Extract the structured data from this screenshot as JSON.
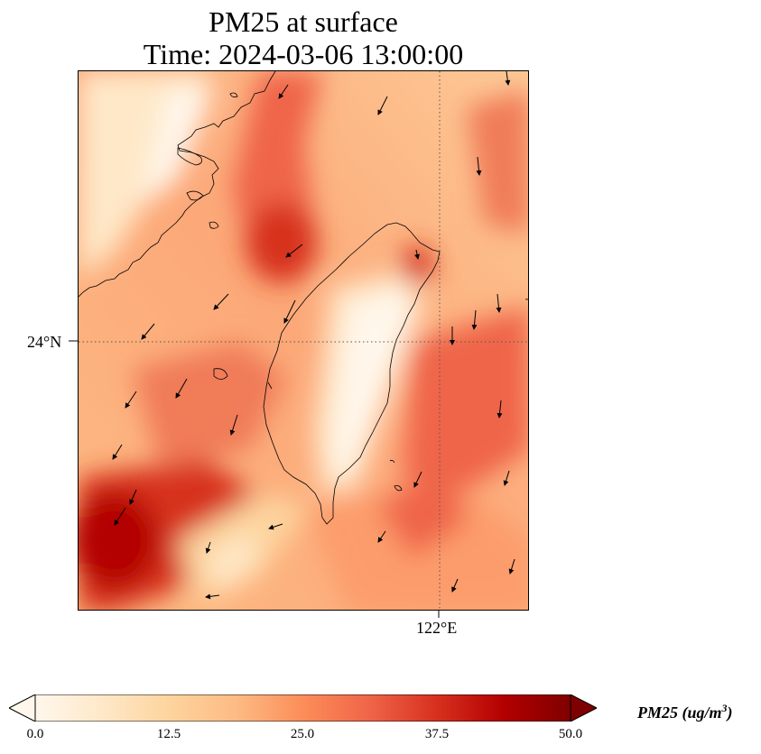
{
  "title": {
    "line1": "PM25 at surface",
    "line2": "Time: 2024-03-06 13:00:00"
  },
  "map": {
    "projection": "plate carree",
    "gridlines": {
      "style": "dotted",
      "color": "#555555"
    },
    "lat_tick_labels": [
      "24°N"
    ],
    "lon_tick_labels": [
      "122°E"
    ],
    "coastline_color": "#000000",
    "vector_color": "#000000"
  },
  "colorbar": {
    "colormap": "OrRd",
    "extend": "both",
    "min": 0.0,
    "max": 50.0,
    "tick_labels": [
      "0.0",
      "12.5",
      "25.0",
      "37.5",
      "50.0"
    ],
    "label_main": "PM25 (ug/m",
    "label_sup": "3",
    "label_end": ")",
    "stops": [
      "#fff7ec",
      "#fee8c8",
      "#fdd49e",
      "#fdbb84",
      "#fc8d59",
      "#ef6548",
      "#d7301f",
      "#b30000",
      "#7f0000"
    ]
  }
}
